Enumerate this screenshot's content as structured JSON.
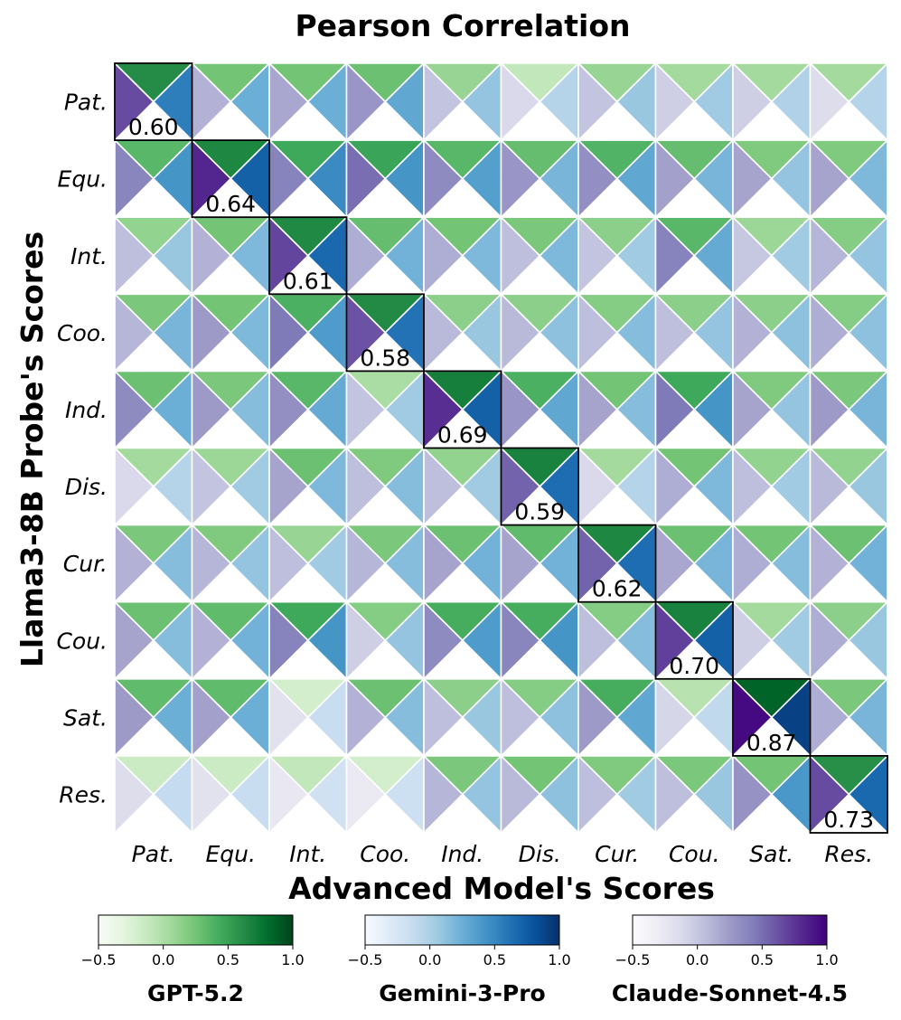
{
  "chart_data": {
    "type": "heatmap",
    "title": "Pearson Correlation",
    "xlabel": "Advanced Model's Scores",
    "ylabel": "Llama3-8B Probe's Scores",
    "row_labels": [
      "Pat.",
      "Equ.",
      "Int.",
      "Coo.",
      "Ind.",
      "Dis.",
      "Cur.",
      "Cou.",
      "Sat.",
      "Res."
    ],
    "col_labels": [
      "Pat.",
      "Equ.",
      "Int.",
      "Coo.",
      "Ind.",
      "Dis.",
      "Cur.",
      "Cou.",
      "Sat.",
      "Res."
    ],
    "vrange": [
      -0.5,
      1.0
    ],
    "cb_ticks": [
      "−0.5",
      "0.0",
      "0.5",
      "1.0"
    ],
    "diagonal_labels": [
      "0.60",
      "0.64",
      "0.61",
      "0.58",
      "0.69",
      "0.59",
      "0.62",
      "0.70",
      "0.87",
      "0.73"
    ],
    "series": [
      {
        "name": "GPT-5.2",
        "colormap": "Greens",
        "position": "top",
        "values": [
          [
            0.62,
            0.25,
            0.25,
            0.28,
            0.1,
            -0.1,
            0.1,
            0.05,
            0.05,
            0.05
          ],
          [
            0.35,
            0.65,
            0.45,
            0.48,
            0.35,
            0.3,
            0.38,
            0.3,
            0.2,
            0.2
          ],
          [
            0.12,
            0.25,
            0.64,
            0.3,
            0.25,
            0.22,
            0.15,
            0.35,
            0.08,
            0.18
          ],
          [
            0.22,
            0.25,
            0.4,
            0.63,
            0.15,
            0.15,
            0.18,
            0.15,
            0.15,
            0.18
          ],
          [
            0.28,
            0.22,
            0.35,
            0.02,
            0.7,
            0.4,
            0.25,
            0.45,
            0.2,
            0.22
          ],
          [
            0.05,
            0.08,
            0.28,
            0.2,
            0.12,
            0.68,
            0.05,
            0.25,
            0.12,
            0.12
          ],
          [
            0.22,
            0.2,
            0.1,
            0.22,
            0.28,
            0.32,
            0.65,
            0.28,
            0.25,
            0.28
          ],
          [
            0.28,
            0.32,
            0.45,
            0.18,
            0.42,
            0.42,
            0.18,
            0.68,
            0.05,
            0.15
          ],
          [
            0.32,
            0.32,
            -0.2,
            0.28,
            0.15,
            0.18,
            0.42,
            -0.05,
            0.86,
            0.22
          ],
          [
            -0.15,
            -0.15,
            -0.1,
            -0.2,
            0.22,
            0.25,
            0.2,
            0.22,
            0.25,
            0.6
          ]
        ]
      },
      {
        "name": "Gemini-3-Pro",
        "colormap": "Blues",
        "position": "right",
        "values": [
          [
            0.55,
            0.25,
            0.25,
            0.3,
            0.1,
            -0.05,
            0.08,
            0.05,
            -0.02,
            -0.05
          ],
          [
            0.42,
            0.72,
            0.48,
            0.42,
            0.35,
            0.2,
            0.3,
            0.2,
            0.1,
            0.18
          ],
          [
            0.08,
            0.18,
            0.68,
            0.22,
            0.18,
            0.18,
            0.05,
            0.28,
            0.05,
            0.1
          ],
          [
            0.2,
            0.18,
            0.38,
            0.62,
            0.08,
            0.12,
            0.15,
            0.1,
            0.12,
            0.12
          ],
          [
            0.25,
            0.15,
            0.28,
            0.05,
            0.72,
            0.3,
            0.15,
            0.42,
            0.1,
            0.2
          ],
          [
            -0.05,
            0.05,
            0.18,
            0.15,
            0.05,
            0.65,
            -0.05,
            0.18,
            0.05,
            0.08
          ],
          [
            0.15,
            0.1,
            0.05,
            0.15,
            0.22,
            0.22,
            0.65,
            0.2,
            0.15,
            0.22
          ],
          [
            0.15,
            0.22,
            0.42,
            0.1,
            0.38,
            0.42,
            0.15,
            0.72,
            0.05,
            0.08
          ],
          [
            0.25,
            0.25,
            -0.15,
            0.15,
            0.08,
            0.12,
            0.3,
            -0.1,
            0.9,
            0.2
          ],
          [
            -0.12,
            -0.15,
            -0.2,
            -0.18,
            0.1,
            0.12,
            0.05,
            0.08,
            0.4,
            0.68
          ]
        ]
      },
      {
        "name": "Claude-Sonnet-4.5",
        "colormap": "Purples",
        "position": "left",
        "values": [
          [
            0.65,
            0.12,
            0.18,
            0.28,
            0.02,
            -0.12,
            0.02,
            -0.05,
            -0.05,
            -0.15
          ],
          [
            0.38,
            0.82,
            0.4,
            0.5,
            0.35,
            0.28,
            0.32,
            0.22,
            0.2,
            0.2
          ],
          [
            0.05,
            0.12,
            0.68,
            0.15,
            0.15,
            0.05,
            0.02,
            0.4,
            0.0,
            0.1
          ],
          [
            0.1,
            0.25,
            0.45,
            0.62,
            0.08,
            0.08,
            0.05,
            0.05,
            0.12,
            0.15
          ],
          [
            0.35,
            0.25,
            0.32,
            0.02,
            0.78,
            0.28,
            0.2,
            0.45,
            0.2,
            0.25
          ],
          [
            -0.12,
            0.02,
            0.2,
            0.05,
            0.05,
            0.55,
            -0.12,
            0.15,
            0.05,
            0.08
          ],
          [
            0.12,
            0.1,
            0.05,
            0.1,
            0.2,
            0.2,
            0.55,
            0.18,
            0.15,
            0.12
          ],
          [
            0.2,
            0.12,
            0.4,
            -0.05,
            0.35,
            0.38,
            0.05,
            0.7,
            -0.05,
            0.15
          ],
          [
            0.25,
            0.22,
            -0.2,
            0.12,
            0.05,
            0.05,
            0.25,
            -0.1,
            0.95,
            0.15
          ],
          [
            -0.15,
            -0.2,
            -0.25,
            -0.28,
            0.1,
            0.08,
            0.05,
            0.05,
            0.3,
            0.65
          ]
        ]
      }
    ]
  }
}
